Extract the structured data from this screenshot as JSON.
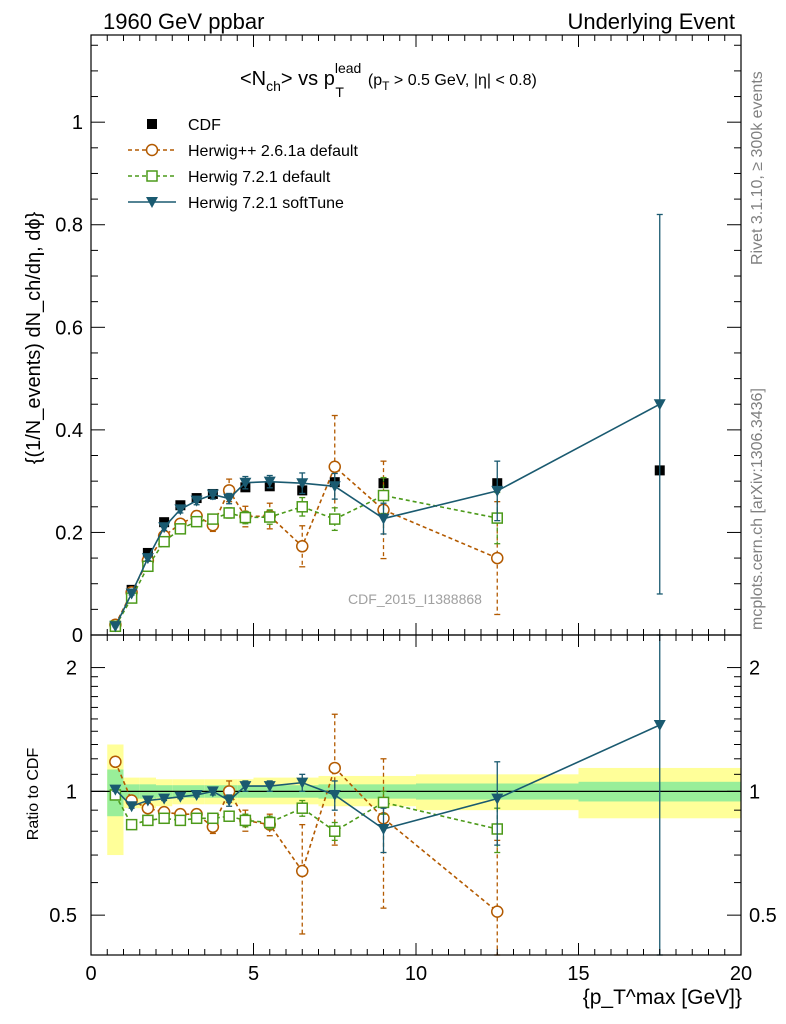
{
  "header": {
    "left": "1960 GeV ppbar",
    "right": "Underlying Event"
  },
  "title": {
    "main": "<N",
    "main_sub": "ch",
    "main_mid": "> vs p",
    "main_sup": "lead",
    "main_sub2": "T",
    "cuts_open": "(p",
    "cuts_sub": "T",
    "cuts_rest": " > 0.5 GeV, |η| < 0.8)"
  },
  "side_labels": {
    "rivet": "Rivet 3.1.10, ≥ 300k events",
    "mcplots": "mcplots.cern.ch [arXiv:1306.3436]"
  },
  "watermark": "CDF_2015_I1388868",
  "chart_data": [
    {
      "type": "scatter",
      "panel": "main",
      "ylabel": "{(1/N_events) dN_ch/dη, dϕ}",
      "xlabel": "{p_T^max [GeV]}",
      "xlim": [
        0,
        20
      ],
      "ylim": [
        0,
        1.17
      ],
      "yticks": [
        0,
        0.2,
        0.4,
        0.6,
        0.8,
        1
      ],
      "ytick_labels": [
        "0",
        "0.2",
        "0.4",
        "0.6",
        "0.8",
        "1"
      ],
      "legend": [
        "CDF",
        "Herwig++ 2.6.1a default",
        "Herwig 7.2.1 default",
        "Herwig 7.2.1 softTune"
      ],
      "legend_position": "top-left",
      "series": [
        {
          "name": "CDF",
          "color": "#000000",
          "marker": "filled-square",
          "x": [
            0.75,
            1.25,
            1.75,
            2.25,
            2.75,
            3.25,
            3.75,
            4.25,
            4.75,
            5.5,
            6.5,
            7.5,
            9.0,
            12.5,
            17.5
          ],
          "y": [
            0.017,
            0.088,
            0.16,
            0.22,
            0.253,
            0.267,
            0.275,
            0.28,
            0.288,
            0.29,
            0.282,
            0.298,
            0.296,
            0.296,
            0.321
          ]
        },
        {
          "name": "Herwig++ 2.6.1a default",
          "color": "#b35a00",
          "marker": "open-circle",
          "dashed": true,
          "x": [
            0.75,
            1.25,
            1.75,
            2.25,
            2.75,
            3.25,
            3.75,
            4.25,
            4.75,
            5.5,
            6.5,
            7.5,
            9.0,
            12.5
          ],
          "y": [
            0.02,
            0.083,
            0.145,
            0.193,
            0.217,
            0.232,
            0.214,
            0.282,
            0.231,
            0.232,
            0.173,
            0.328,
            0.244,
            0.15
          ],
          "err": [
            0.002,
            0.004,
            0.006,
            0.007,
            0.008,
            0.01,
            0.012,
            0.022,
            0.02,
            0.025,
            0.04,
            0.1,
            0.095,
            0.11
          ]
        },
        {
          "name": "Herwig 7.2.1 default",
          "color": "#4c9a1a",
          "marker": "open-square",
          "dashed": true,
          "x": [
            0.75,
            1.25,
            1.75,
            2.25,
            2.75,
            3.25,
            3.75,
            4.25,
            4.75,
            5.5,
            6.5,
            7.5,
            9.0,
            12.5
          ],
          "y": [
            0.017,
            0.072,
            0.134,
            0.182,
            0.207,
            0.221,
            0.226,
            0.238,
            0.229,
            0.23,
            0.25,
            0.226,
            0.272,
            0.228
          ],
          "err": [
            0.001,
            0.003,
            0.004,
            0.005,
            0.006,
            0.007,
            0.008,
            0.01,
            0.012,
            0.014,
            0.018,
            0.022,
            0.035,
            0.05
          ]
        },
        {
          "name": "Herwig 7.2.1 softTune",
          "color": "#1a5a70",
          "marker": "filled-triangle-down",
          "x": [
            0.75,
            1.25,
            1.75,
            2.25,
            2.75,
            3.25,
            3.75,
            4.25,
            4.75,
            5.5,
            6.5,
            7.5,
            9.0,
            12.5,
            17.5
          ],
          "y": [
            0.017,
            0.081,
            0.15,
            0.21,
            0.245,
            0.262,
            0.274,
            0.266,
            0.297,
            0.299,
            0.296,
            0.29,
            0.227,
            0.281,
            0.45
          ],
          "err": [
            0.001,
            0.003,
            0.005,
            0.006,
            0.007,
            0.008,
            0.009,
            0.01,
            0.012,
            0.012,
            0.02,
            0.025,
            0.03,
            0.058,
            0.37
          ]
        }
      ]
    },
    {
      "type": "scatter",
      "panel": "ratio",
      "ylabel": "Ratio to CDF",
      "xlabel": "{p_T^max [GeV]}",
      "xlim": [
        0,
        20
      ],
      "ylim": [
        0.4,
        2.4
      ],
      "yscale": "log",
      "yticks": [
        0.5,
        1,
        2
      ],
      "ytick_labels": [
        "0.5",
        "1",
        "2"
      ],
      "xticks": [
        0,
        5,
        10,
        15,
        20
      ],
      "xtick_labels": [
        "0",
        "5",
        "10",
        "15",
        "20"
      ],
      "bands": {
        "bins": [
          [
            0.5,
            1.0
          ],
          [
            1.0,
            1.5
          ],
          [
            1.5,
            2.0
          ],
          [
            2.0,
            2.5
          ],
          [
            2.5,
            3.0
          ],
          [
            3.0,
            3.5
          ],
          [
            3.5,
            4.0
          ],
          [
            4.0,
            4.5
          ],
          [
            4.5,
            5.0
          ],
          [
            5.0,
            6.0
          ],
          [
            6.0,
            7.0
          ],
          [
            7.0,
            8.0
          ],
          [
            8.0,
            10.0
          ],
          [
            10.0,
            15.0
          ],
          [
            15.0,
            20.0
          ]
        ],
        "inner_lo": [
          0.87,
          0.96,
          0.96,
          0.965,
          0.965,
          0.965,
          0.965,
          0.965,
          0.965,
          0.965,
          0.965,
          0.96,
          0.96,
          0.955,
          0.945
        ],
        "inner_hi": [
          1.13,
          1.04,
          1.04,
          1.035,
          1.035,
          1.035,
          1.035,
          1.035,
          1.035,
          1.035,
          1.035,
          1.04,
          1.04,
          1.045,
          1.055
        ],
        "outer_lo": [
          0.7,
          0.91,
          0.91,
          0.92,
          0.93,
          0.93,
          0.93,
          0.93,
          0.93,
          0.93,
          0.93,
          0.92,
          0.92,
          0.9,
          0.86
        ],
        "outer_hi": [
          1.3,
          1.08,
          1.08,
          1.07,
          1.07,
          1.07,
          1.07,
          1.07,
          1.07,
          1.08,
          1.08,
          1.09,
          1.09,
          1.1,
          1.14
        ],
        "inner_color": "#99ee99",
        "outer_color": "#ffff99"
      },
      "series": [
        {
          "name": "Herwig++ 2.6.1a default",
          "color": "#b35a00",
          "marker": "open-circle",
          "dashed": true,
          "x": [
            0.75,
            1.25,
            1.75,
            2.25,
            2.75,
            3.25,
            3.75,
            4.25,
            4.75,
            5.5,
            6.5,
            7.5,
            9.0,
            12.5
          ],
          "y": [
            1.18,
            0.95,
            0.91,
            0.89,
            0.88,
            0.88,
            0.82,
            1.0,
            0.85,
            0.83,
            0.64,
            1.14,
            0.86,
            0.51
          ],
          "err": [
            0.02,
            0.02,
            0.02,
            0.02,
            0.02,
            0.02,
            0.03,
            0.06,
            0.05,
            0.05,
            0.19,
            0.4,
            0.34,
            0.25
          ]
        },
        {
          "name": "Herwig 7.2.1 default",
          "color": "#4c9a1a",
          "marker": "open-square",
          "dashed": true,
          "x": [
            0.75,
            1.25,
            1.75,
            2.25,
            2.75,
            3.25,
            3.75,
            4.25,
            4.75,
            5.5,
            6.5,
            7.5,
            9.0,
            12.5
          ],
          "y": [
            0.98,
            0.83,
            0.85,
            0.86,
            0.85,
            0.86,
            0.86,
            0.87,
            0.85,
            0.84,
            0.91,
            0.8,
            0.94,
            0.81
          ],
          "err": [
            0.01,
            0.01,
            0.01,
            0.01,
            0.01,
            0.01,
            0.02,
            0.02,
            0.03,
            0.03,
            0.04,
            0.04,
            0.06,
            0.1
          ]
        },
        {
          "name": "Herwig 7.2.1 softTune",
          "color": "#1a5a70",
          "marker": "filled-triangle-down",
          "x": [
            0.75,
            1.25,
            1.75,
            2.25,
            2.75,
            3.25,
            3.75,
            4.25,
            4.75,
            5.5,
            6.5,
            7.5,
            9.0,
            12.5,
            17.5
          ],
          "y": [
            1.01,
            0.92,
            0.95,
            0.96,
            0.97,
            0.98,
            1.0,
            0.95,
            1.03,
            1.03,
            1.05,
            0.98,
            0.81,
            0.96,
            1.45
          ],
          "err": [
            0.01,
            0.01,
            0.01,
            0.01,
            0.01,
            0.01,
            0.02,
            0.03,
            0.03,
            0.03,
            0.05,
            0.08,
            0.1,
            0.22,
            1.2
          ]
        }
      ]
    }
  ]
}
